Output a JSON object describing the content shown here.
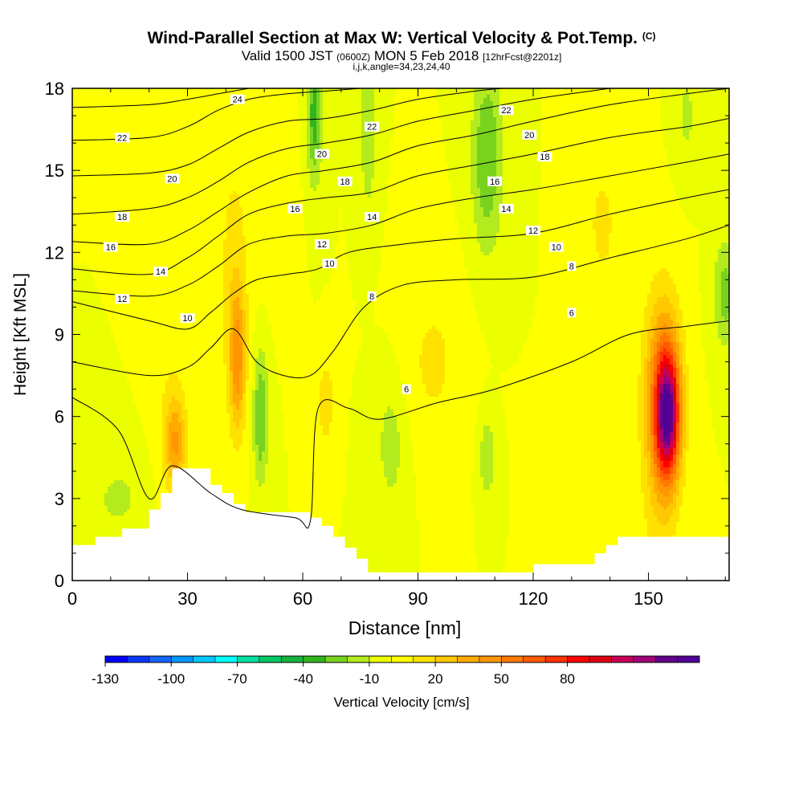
{
  "title": {
    "main": "Wind-Parallel Section at Max W: Vertical Velocity & Pot.Temp.",
    "copyright": "(C)",
    "valid_prefix": "Valid 1500 JST",
    "valid_utc": "(0600Z)",
    "valid_date": "MON 5 Feb 2018",
    "forecast": "[12hrFcst@2201z]",
    "params": "i,j,k,angle=34,23,24,40"
  },
  "chart_data": {
    "type": "heatmap",
    "title": "Wind-Parallel Section at Max W: Vertical Velocity & Pot.Temp.",
    "xlabel": "Distance [nm]",
    "ylabel": "Height [Kft MSL]",
    "xlim": [
      0,
      171
    ],
    "ylim": [
      0,
      18
    ],
    "x_ticks": [
      0,
      30,
      60,
      90,
      120,
      150
    ],
    "y_ticks": [
      0,
      3,
      6,
      9,
      12,
      15,
      18
    ],
    "colorbar": {
      "label": "Vertical Velocity [cm/s]",
      "min": -130,
      "max": 95,
      "step": 10,
      "tick_values": [
        -130,
        -100,
        -70,
        -40,
        -10,
        20,
        50,
        80
      ],
      "tick_labels": [
        "-130",
        "-100",
        "-70",
        "-40",
        "-10",
        "20",
        "50",
        "80"
      ],
      "colors": [
        "#0000ff",
        "#0a37ff",
        "#1464ff",
        "#0096ff",
        "#00c8ff",
        "#00ffff",
        "#00e0a0",
        "#00c864",
        "#14b43c",
        "#32b41e",
        "#78d21e",
        "#b4eb1e",
        "#ebff00",
        "#ffff00",
        "#ffe100",
        "#ffc800",
        "#ffaa00",
        "#ff9600",
        "#ff7800",
        "#ff5a00",
        "#ff3200",
        "#ff0000",
        "#dc0014",
        "#c8005a",
        "#a00078",
        "#64008c",
        "#500096"
      ]
    },
    "vertical_velocity_field": {
      "background": 0,
      "features": [
        {
          "x": 155,
          "y": 6.0,
          "sx": 3,
          "sy": 2.2,
          "value": 95
        },
        {
          "x": 154,
          "y": 7.0,
          "sx": 4.5,
          "sy": 3.2,
          "value": 40
        },
        {
          "x": 153,
          "y": 5.0,
          "sx": 5,
          "sy": 5,
          "value": 20
        },
        {
          "x": 43,
          "y": 8.0,
          "sx": 2,
          "sy": 2.5,
          "value": 40
        },
        {
          "x": 42,
          "y": 11.0,
          "sx": 4,
          "sy": 5,
          "value": 15
        },
        {
          "x": 27,
          "y": 5.0,
          "sx": 2.5,
          "sy": 1.5,
          "value": 30
        },
        {
          "x": 26,
          "y": 5.5,
          "sx": 4,
          "sy": 3,
          "value": 14
        },
        {
          "x": 49,
          "y": 6.0,
          "sx": 2,
          "sy": 2.5,
          "value": -30
        },
        {
          "x": 66,
          "y": 6.5,
          "sx": 2,
          "sy": 1.5,
          "value": 20
        },
        {
          "x": 63,
          "y": 17.0,
          "sx": 2,
          "sy": 2.5,
          "value": -35
        },
        {
          "x": 77,
          "y": 16.5,
          "sx": 2,
          "sy": 3,
          "value": -20
        },
        {
          "x": 108,
          "y": 15.5,
          "sx": 4,
          "sy": 3.5,
          "value": -30
        },
        {
          "x": 94,
          "y": 8.0,
          "sx": 8,
          "sy": 3,
          "value": 12
        },
        {
          "x": 108,
          "y": 4.5,
          "sx": 2,
          "sy": 1.5,
          "value": -20
        },
        {
          "x": 83,
          "y": 5.0,
          "sx": 4,
          "sy": 2.5,
          "value": -15
        },
        {
          "x": 12,
          "y": 3.0,
          "sx": 8,
          "sy": 1.5,
          "value": -12
        },
        {
          "x": 170,
          "y": 10.5,
          "sx": 3,
          "sy": 2,
          "value": -25
        },
        {
          "x": 160,
          "y": 17.0,
          "sx": 3,
          "sy": 2,
          "value": -12
        },
        {
          "x": 52,
          "y": 14.0,
          "sx": 5,
          "sy": 3,
          "value": 10
        },
        {
          "x": 138,
          "y": 13.0,
          "sx": 5,
          "sy": 3,
          "value": 12
        }
      ]
    },
    "terrain_kft": [
      [
        0,
        1.3
      ],
      [
        6,
        1.6
      ],
      [
        13,
        1.9
      ],
      [
        20,
        2.6
      ],
      [
        23,
        3.2
      ],
      [
        26,
        4.1
      ],
      [
        36,
        3.5
      ],
      [
        39,
        3.2
      ],
      [
        42,
        2.8
      ],
      [
        45,
        2.5
      ],
      [
        62,
        2.3
      ],
      [
        65,
        2.0
      ],
      [
        68,
        1.6
      ],
      [
        71,
        1.2
      ],
      [
        74,
        0.8
      ],
      [
        77,
        0.3
      ],
      [
        120,
        0.6
      ],
      [
        136,
        1.0
      ],
      [
        139,
        1.3
      ],
      [
        142,
        1.6
      ],
      [
        149,
        1.6
      ],
      [
        171,
        1.6
      ]
    ],
    "potential_temperature_contours": [
      {
        "value": 6,
        "label": "6",
        "points": [
          [
            0,
            6.7
          ],
          [
            12,
            5.5
          ],
          [
            20,
            3.0
          ],
          [
            26,
            4.2
          ],
          [
            36,
            3.2
          ],
          [
            44,
            2.6
          ],
          [
            58,
            2.3
          ],
          [
            62,
            2.2
          ],
          [
            64,
            6.3
          ],
          [
            72,
            6.3
          ],
          [
            80,
            5.9
          ],
          [
            95,
            6.5
          ],
          [
            110,
            7.0
          ],
          [
            130,
            8.0
          ],
          [
            145,
            9.0
          ],
          [
            160,
            9.3
          ],
          [
            171,
            9.5
          ]
        ],
        "label_at": [
          87,
          7.0
        ]
      },
      {
        "value": 8,
        "label": "8",
        "points": [
          [
            0,
            8.0
          ],
          [
            20,
            7.5
          ],
          [
            30,
            7.8
          ],
          [
            36,
            8.5
          ],
          [
            42,
            9.2
          ],
          [
            48,
            8.0
          ],
          [
            55,
            7.5
          ],
          [
            62,
            7.5
          ],
          [
            68,
            8.4
          ],
          [
            76,
            10.0
          ],
          [
            86,
            10.8
          ],
          [
            100,
            11.0
          ],
          [
            120,
            11.1
          ],
          [
            140,
            11.8
          ],
          [
            160,
            12.5
          ],
          [
            171,
            13.0
          ]
        ],
        "label_at": [
          78,
          10.4
        ]
      },
      {
        "value": 10,
        "label": "10",
        "points": [
          [
            0,
            10.2
          ],
          [
            20,
            9.5
          ],
          [
            30,
            9.2
          ],
          [
            36,
            9.8
          ],
          [
            42,
            10.5
          ],
          [
            48,
            11.0
          ],
          [
            56,
            11.2
          ],
          [
            64,
            11.4
          ],
          [
            72,
            12.0
          ],
          [
            86,
            12.3
          ],
          [
            100,
            12.5
          ],
          [
            120,
            12.7
          ],
          [
            140,
            13.4
          ],
          [
            160,
            14.0
          ],
          [
            171,
            14.3
          ]
        ],
        "label_at": [
          30,
          9.6
        ]
      },
      {
        "value": 12,
        "label": "12",
        "points": [
          [
            0,
            10.6
          ],
          [
            20,
            10.4
          ],
          [
            30,
            10.8
          ],
          [
            38,
            11.5
          ],
          [
            46,
            12.3
          ],
          [
            56,
            12.6
          ],
          [
            66,
            12.7
          ],
          [
            78,
            13.0
          ],
          [
            90,
            13.6
          ],
          [
            105,
            14.0
          ],
          [
            120,
            14.3
          ],
          [
            140,
            14.8
          ],
          [
            160,
            15.3
          ],
          [
            171,
            15.6
          ]
        ],
        "label_at": [
          13,
          10.3
        ]
      },
      {
        "value": 14,
        "label": "14",
        "points": [
          [
            0,
            11.4
          ],
          [
            20,
            11.2
          ],
          [
            30,
            11.8
          ],
          [
            38,
            12.6
          ],
          [
            46,
            13.4
          ],
          [
            56,
            13.8
          ],
          [
            66,
            14.0
          ],
          [
            78,
            14.2
          ],
          [
            90,
            14.8
          ],
          [
            105,
            15.2
          ],
          [
            120,
            15.6
          ],
          [
            140,
            16.2
          ],
          [
            160,
            16.6
          ],
          [
            171,
            16.9
          ]
        ],
        "label_at": [
          23,
          11.3
        ]
      },
      {
        "value": 16,
        "label": "16",
        "points": [
          [
            0,
            12.4
          ],
          [
            20,
            12.3
          ],
          [
            30,
            12.8
          ],
          [
            38,
            13.5
          ],
          [
            46,
            14.2
          ],
          [
            56,
            14.8
          ],
          [
            66,
            15.0
          ],
          [
            78,
            15.3
          ],
          [
            90,
            15.9
          ],
          [
            105,
            16.3
          ],
          [
            120,
            16.8
          ],
          [
            140,
            17.4
          ],
          [
            160,
            17.8
          ],
          [
            171,
            18.0
          ]
        ],
        "label_at": [
          10,
          12.2
        ]
      },
      {
        "value": 18,
        "label": "18",
        "points": [
          [
            0,
            13.4
          ],
          [
            20,
            13.6
          ],
          [
            30,
            14.0
          ],
          [
            38,
            14.6
          ],
          [
            46,
            15.3
          ],
          [
            56,
            15.8
          ],
          [
            66,
            16.0
          ],
          [
            78,
            16.3
          ],
          [
            90,
            16.8
          ],
          [
            105,
            17.2
          ],
          [
            120,
            17.6
          ],
          [
            140,
            18.0
          ]
        ],
        "label_at": [
          13,
          13.3
        ]
      },
      {
        "value": 20,
        "label": "20",
        "points": [
          [
            0,
            14.8
          ],
          [
            20,
            14.9
          ],
          [
            30,
            15.2
          ],
          [
            38,
            15.8
          ],
          [
            46,
            16.4
          ],
          [
            56,
            16.8
          ],
          [
            66,
            16.9
          ],
          [
            78,
            17.2
          ],
          [
            90,
            17.6
          ],
          [
            105,
            17.9
          ],
          [
            112,
            18.0
          ]
        ],
        "label_at": [
          26,
          14.7
        ]
      },
      {
        "value": 22,
        "label": "22",
        "points": [
          [
            0,
            16.1
          ],
          [
            20,
            16.2
          ],
          [
            30,
            16.6
          ],
          [
            38,
            17.2
          ],
          [
            46,
            17.6
          ],
          [
            56,
            17.8
          ],
          [
            66,
            17.9
          ],
          [
            75,
            18.0
          ]
        ],
        "label_at": [
          13,
          16.2
        ]
      },
      {
        "value": 24,
        "label": "24",
        "points": [
          [
            0,
            17.3
          ],
          [
            20,
            17.4
          ],
          [
            30,
            17.6
          ],
          [
            38,
            17.8
          ],
          [
            46,
            18.0
          ]
        ],
        "label_at": [
          43,
          17.6
        ]
      }
    ],
    "extra_contour_labels": [
      {
        "label": "6",
        "at": [
          130,
          9.8
        ]
      },
      {
        "label": "8",
        "at": [
          130,
          11.5
        ]
      },
      {
        "label": "10",
        "at": [
          67,
          11.6
        ]
      },
      {
        "label": "10",
        "at": [
          126,
          12.2
        ]
      },
      {
        "label": "12",
        "at": [
          65,
          12.3
        ]
      },
      {
        "label": "12",
        "at": [
          120,
          12.8
        ]
      },
      {
        "label": "14",
        "at": [
          78,
          13.3
        ]
      },
      {
        "label": "14",
        "at": [
          113,
          13.6
        ]
      },
      {
        "label": "16",
        "at": [
          58,
          13.6
        ]
      },
      {
        "label": "16",
        "at": [
          110,
          14.6
        ]
      },
      {
        "label": "18",
        "at": [
          71,
          14.6
        ]
      },
      {
        "label": "18",
        "at": [
          123,
          15.5
        ]
      },
      {
        "label": "20",
        "at": [
          65,
          15.6
        ]
      },
      {
        "label": "20",
        "at": [
          119,
          16.3
        ]
      },
      {
        "label": "22",
        "at": [
          78,
          16.6
        ]
      },
      {
        "label": "22",
        "at": [
          113,
          17.2
        ]
      }
    ]
  }
}
